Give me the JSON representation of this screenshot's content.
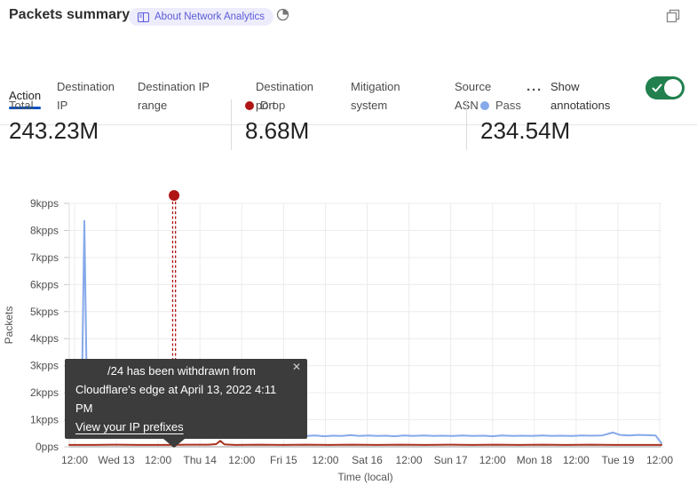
{
  "header": {
    "title": "Packets summary",
    "badge_label": "About Network Analytics"
  },
  "tabs": {
    "items": [
      {
        "label": "Action",
        "active": true
      },
      {
        "label": "Destination IP"
      },
      {
        "label": "Destination IP range"
      },
      {
        "label": "Destination port"
      },
      {
        "label": "Mitigation system"
      },
      {
        "label": "Source ASN"
      }
    ],
    "more_label": "···",
    "annotations_label": "Show annotations",
    "toggle_on": true,
    "accent_color": "#0051c3",
    "toggle_color": "#21804e"
  },
  "stats": {
    "total": {
      "label": "Total",
      "value": "243.23M"
    },
    "drop": {
      "label": "Drop",
      "value": "8.68M",
      "color": "#b01414"
    },
    "pass": {
      "label": "Pass",
      "value": "234.54M",
      "color": "#85a9ea"
    }
  },
  "tooltip": {
    "line1": "/24 has been withdrawn from",
    "line2": "Cloudflare's edge at April 13, 2022 4:11 PM",
    "link_label": "View your IP prefixes",
    "close_glyph": "✕"
  },
  "chart_data": {
    "type": "line",
    "title": "Packets summary",
    "ylabel": "Packets",
    "xlabel": "Time (local)",
    "y_unit": "kpps",
    "ylim": [
      0,
      9
    ],
    "grid": true,
    "y_ticks": [
      "9kpps",
      "8kpps",
      "7kpps",
      "6kpps",
      "5kpps",
      "4kpps",
      "3kpps",
      "2kpps",
      "1kpps",
      "0pps"
    ],
    "x_ticks": [
      "12:00",
      "Wed 13",
      "12:00",
      "Thu 14",
      "12:00",
      "Fri 15",
      "12:00",
      "Sat 16",
      "12:00",
      "Sun 17",
      "12:00",
      "Mon 18",
      "12:00",
      "Tue 19",
      "12:00"
    ],
    "annotation": {
      "x_frac": 0.177,
      "color": "#b01414",
      "text": "/24 has been withdrawn from Cloudflare's edge at April 13, 2022 4:11 PM"
    },
    "series": [
      {
        "name": "Pass",
        "color": "#85a9ea",
        "total": "234.54M",
        "points": [
          [
            0,
            0.32
          ],
          [
            0.01,
            0.34
          ],
          [
            0.016,
            0.38
          ],
          [
            0.021,
            1.5
          ],
          [
            0.0255,
            8.35
          ],
          [
            0.029,
            3.2
          ],
          [
            0.032,
            1.0
          ],
          [
            0.037,
            0.62
          ],
          [
            0.045,
            0.48
          ],
          [
            0.055,
            0.4
          ],
          [
            0.07,
            0.38
          ],
          [
            0.085,
            0.37
          ],
          [
            0.1,
            0.38
          ],
          [
            0.115,
            0.44
          ],
          [
            0.123,
            0.52
          ],
          [
            0.13,
            0.42
          ],
          [
            0.142,
            0.38
          ],
          [
            0.152,
            0.4
          ],
          [
            0.158,
            0.47
          ],
          [
            0.165,
            0.4
          ],
          [
            0.172,
            0.42
          ],
          [
            0.177,
            0.43
          ],
          [
            0.185,
            0.39
          ],
          [
            0.2,
            0.4
          ],
          [
            0.215,
            0.38
          ],
          [
            0.23,
            0.4
          ],
          [
            0.245,
            0.44
          ],
          [
            0.258,
            0.46
          ],
          [
            0.27,
            0.4
          ],
          [
            0.285,
            0.38
          ],
          [
            0.3,
            0.41
          ],
          [
            0.315,
            0.39
          ],
          [
            0.33,
            0.42
          ],
          [
            0.345,
            0.4
          ],
          [
            0.36,
            0.43
          ],
          [
            0.375,
            0.47
          ],
          [
            0.385,
            0.41
          ],
          [
            0.4,
            0.4
          ],
          [
            0.415,
            0.42
          ],
          [
            0.43,
            0.39
          ],
          [
            0.445,
            0.41
          ],
          [
            0.46,
            0.4
          ],
          [
            0.475,
            0.43
          ],
          [
            0.49,
            0.4
          ],
          [
            0.505,
            0.42
          ],
          [
            0.52,
            0.4
          ],
          [
            0.535,
            0.41
          ],
          [
            0.55,
            0.39
          ],
          [
            0.565,
            0.42
          ],
          [
            0.58,
            0.4
          ],
          [
            0.6,
            0.42
          ],
          [
            0.615,
            0.4
          ],
          [
            0.63,
            0.41
          ],
          [
            0.65,
            0.4
          ],
          [
            0.665,
            0.42
          ],
          [
            0.68,
            0.4
          ],
          [
            0.7,
            0.41
          ],
          [
            0.715,
            0.39
          ],
          [
            0.73,
            0.42
          ],
          [
            0.75,
            0.4
          ],
          [
            0.765,
            0.41
          ],
          [
            0.78,
            0.4
          ],
          [
            0.8,
            0.42
          ],
          [
            0.815,
            0.4
          ],
          [
            0.83,
            0.41
          ],
          [
            0.85,
            0.4
          ],
          [
            0.865,
            0.42
          ],
          [
            0.88,
            0.41
          ],
          [
            0.9,
            0.42
          ],
          [
            0.918,
            0.53
          ],
          [
            0.93,
            0.44
          ],
          [
            0.945,
            0.42
          ],
          [
            0.96,
            0.44
          ],
          [
            0.975,
            0.43
          ],
          [
            0.99,
            0.42
          ],
          [
            1,
            0.13
          ]
        ]
      },
      {
        "name": "Drop",
        "color": "#a9331f",
        "total": "8.68M",
        "points": [
          [
            0,
            0.07
          ],
          [
            0.04,
            0.07
          ],
          [
            0.08,
            0.08
          ],
          [
            0.12,
            0.07
          ],
          [
            0.16,
            0.07
          ],
          [
            0.2,
            0.08
          ],
          [
            0.235,
            0.08
          ],
          [
            0.248,
            0.1
          ],
          [
            0.255,
            0.22
          ],
          [
            0.262,
            0.09
          ],
          [
            0.28,
            0.07
          ],
          [
            0.32,
            0.08
          ],
          [
            0.36,
            0.07
          ],
          [
            0.4,
            0.08
          ],
          [
            0.44,
            0.07
          ],
          [
            0.48,
            0.08
          ],
          [
            0.52,
            0.07
          ],
          [
            0.56,
            0.08
          ],
          [
            0.6,
            0.07
          ],
          [
            0.64,
            0.08
          ],
          [
            0.68,
            0.07
          ],
          [
            0.72,
            0.08
          ],
          [
            0.76,
            0.07
          ],
          [
            0.8,
            0.08
          ],
          [
            0.84,
            0.07
          ],
          [
            0.88,
            0.08
          ],
          [
            0.92,
            0.07
          ],
          [
            0.96,
            0.07
          ],
          [
            1,
            0.07
          ]
        ]
      }
    ]
  }
}
